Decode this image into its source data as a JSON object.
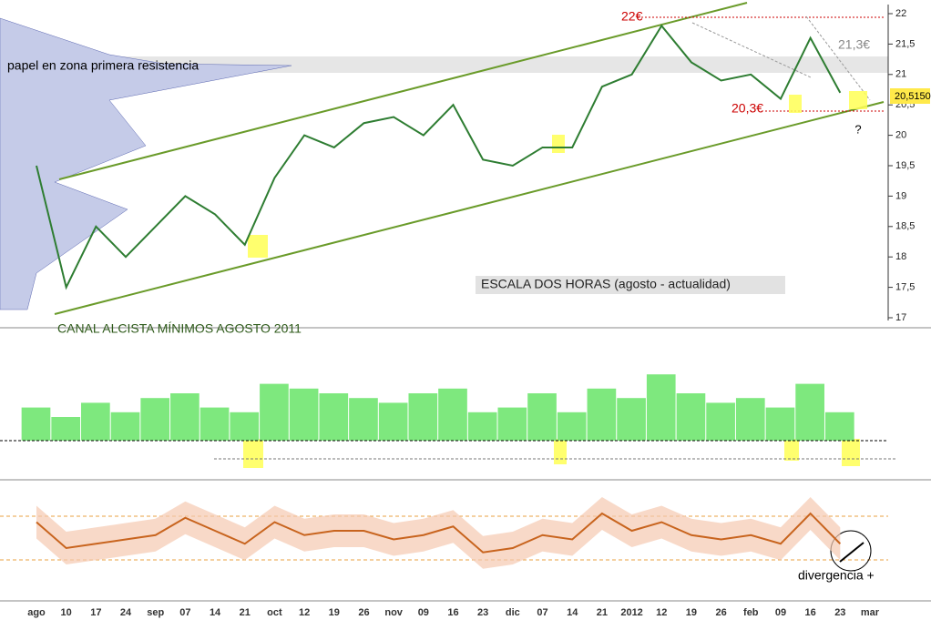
{
  "chart_data": [
    {
      "type": "line",
      "title": "ESCALA DOS HORAS (agosto - actualidad)",
      "categories": [
        "ago",
        "10",
        "17",
        "24",
        "sep",
        "07",
        "14",
        "21",
        "oct",
        "12",
        "19",
        "26",
        "nov",
        "09",
        "16",
        "23",
        "dic",
        "07",
        "14",
        "21",
        "2012",
        "12",
        "19",
        "26",
        "feb",
        "09",
        "16",
        "23",
        "mar"
      ],
      "values": [
        19.5,
        17.5,
        18.5,
        18.0,
        18.5,
        19.0,
        18.7,
        18.2,
        19.3,
        20.0,
        19.8,
        20.2,
        20.3,
        20.0,
        20.5,
        19.6,
        19.5,
        19.8,
        19.8,
        20.8,
        21.0,
        21.8,
        21.2,
        20.9,
        21.0,
        20.6,
        21.6,
        20.7,
        null
      ],
      "color": "#2e7d32",
      "ylim": [
        17,
        22
      ],
      "yticks": [
        17,
        {
          "value": 17.5,
          "label": "17,5"
        },
        18,
        {
          "value": 18.5,
          "label": "18,5"
        },
        19,
        {
          "value": 19.5,
          "label": "19,5"
        },
        20,
        {
          "value": 20.5,
          "label": "20,5"
        },
        21,
        {
          "value": 21.5,
          "label": "21,5"
        },
        22
      ],
      "annotations": [
        "22€",
        "20,3€",
        "21,3€",
        "?",
        "papel en zona primera resistencia",
        "CANAL ALCISTA MÍNIMOS AGOSTO 2011",
        "20,5150"
      ]
    },
    {
      "type": "bar",
      "values": [
        0.35,
        0.25,
        0.4,
        0.3,
        0.45,
        0.5,
        0.35,
        0.3,
        0.6,
        0.55,
        0.5,
        0.45,
        0.4,
        0.5,
        0.55,
        0.3,
        0.35,
        0.5,
        0.3,
        0.55,
        0.45,
        0.7,
        0.5,
        0.4,
        0.45,
        0.35,
        0.6,
        0.3,
        null
      ],
      "color": "#7ee87e",
      "ylim": [
        -0.25,
        1
      ]
    },
    {
      "type": "line",
      "values": [
        0.7,
        0.4,
        0.45,
        0.5,
        0.55,
        0.75,
        0.6,
        0.45,
        0.7,
        0.55,
        0.6,
        0.6,
        0.5,
        0.55,
        0.65,
        0.35,
        0.4,
        0.55,
        0.5,
        0.8,
        0.6,
        0.7,
        0.55,
        0.5,
        0.55,
        0.45,
        0.8,
        0.45,
        null
      ],
      "color": "#c8641e",
      "ylim": [
        0,
        1
      ],
      "annotations": [
        "divergencia +"
      ]
    }
  ]
}
